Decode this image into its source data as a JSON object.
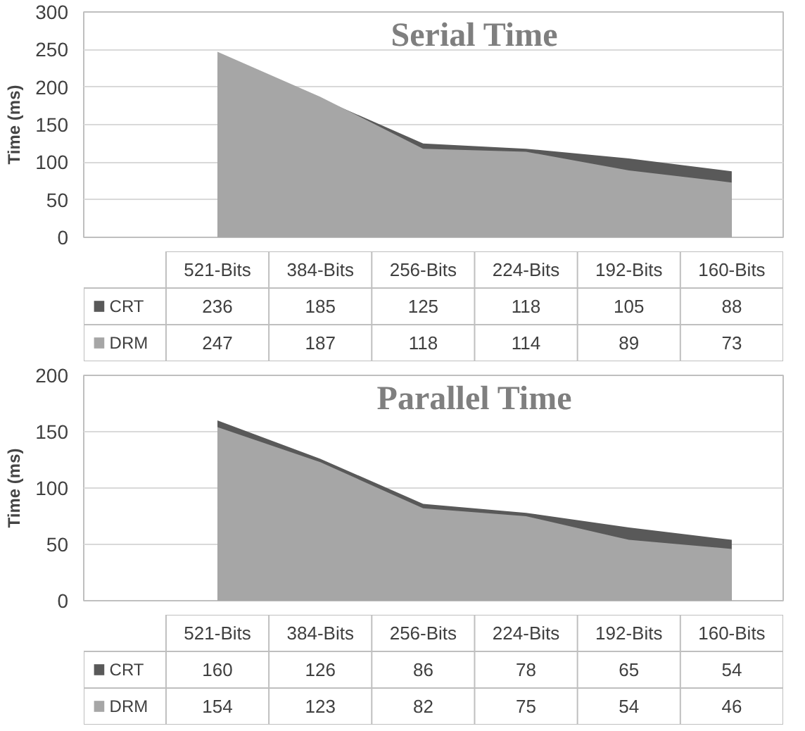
{
  "chart_data": [
    {
      "type": "area",
      "title": "Serial Time",
      "ylabel": "Time (ms)",
      "categories": [
        "521-Bits",
        "384-Bits",
        "256-Bits",
        "224-Bits",
        "192-Bits",
        "160-Bits"
      ],
      "series": [
        {
          "name": "CRT",
          "color": "#595959",
          "values": [
            236,
            185,
            125,
            118,
            105,
            88
          ]
        },
        {
          "name": "DRM",
          "color": "#a6a6a6",
          "values": [
            247,
            187,
            118,
            114,
            89,
            73
          ]
        }
      ],
      "ylim": [
        0,
        300
      ],
      "yticks": [
        0,
        50,
        100,
        150,
        200,
        250,
        300
      ],
      "grid": "y",
      "data_labels": true,
      "legend": "bottom left"
    },
    {
      "type": "area",
      "title": "Parallel Time",
      "ylabel": "Time (ms)",
      "categories": [
        "521-Bits",
        "384-Bits",
        "256-Bits",
        "224-Bits",
        "192-Bits",
        "160-Bits"
      ],
      "series": [
        {
          "name": "CRT",
          "color": "#595959",
          "values": [
            160,
            126,
            86,
            78,
            65,
            54
          ]
        },
        {
          "name": "DRM",
          "color": "#a6a6a6",
          "values": [
            154,
            123,
            82,
            75,
            54,
            46
          ]
        }
      ],
      "ylim": [
        0,
        200
      ],
      "yticks": [
        0,
        50,
        100,
        150,
        200
      ],
      "grid": "y",
      "data_labels": true,
      "legend": "bottom left"
    }
  ]
}
